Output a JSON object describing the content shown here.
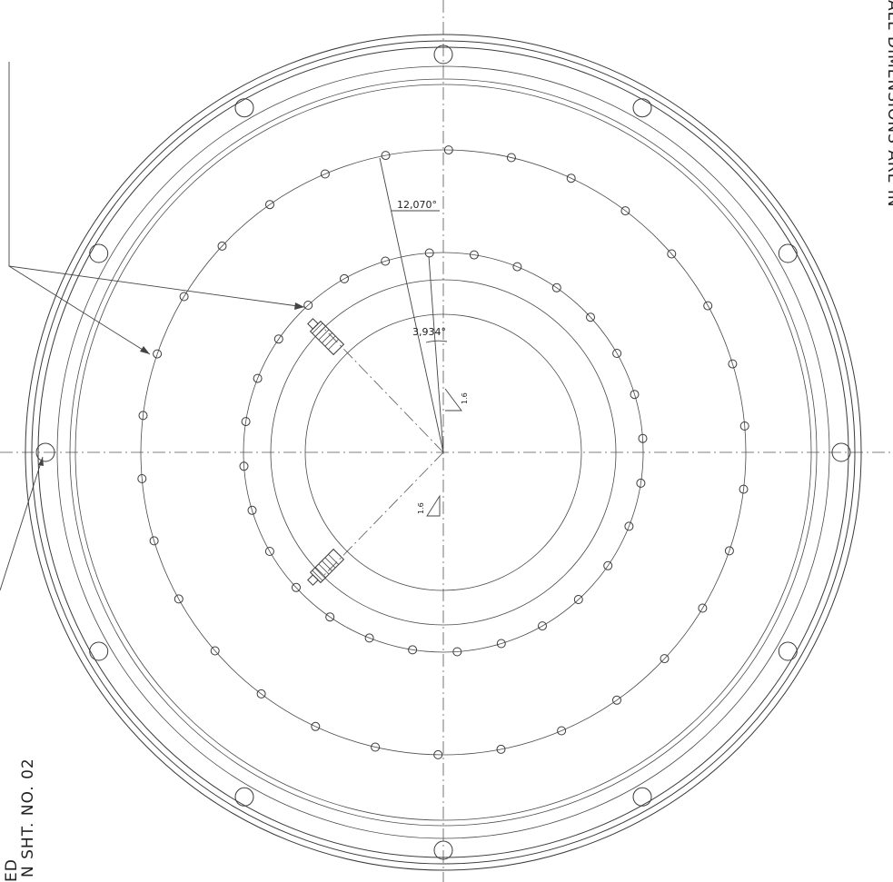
{
  "dimensions": {
    "angle_outer": "12,070°",
    "angle_inner": "3,934°",
    "weld_symbol_top": "1.6",
    "weld_symbol_bottom": "1.6"
  },
  "notes": {
    "line_1": "ED",
    "line_2": "N SHT. NO. 02",
    "right_edge": "ALL DIMENSIONS ARE IN"
  },
  "colors": {
    "line": "#3a3a3a",
    "paper": "#ffffff"
  }
}
